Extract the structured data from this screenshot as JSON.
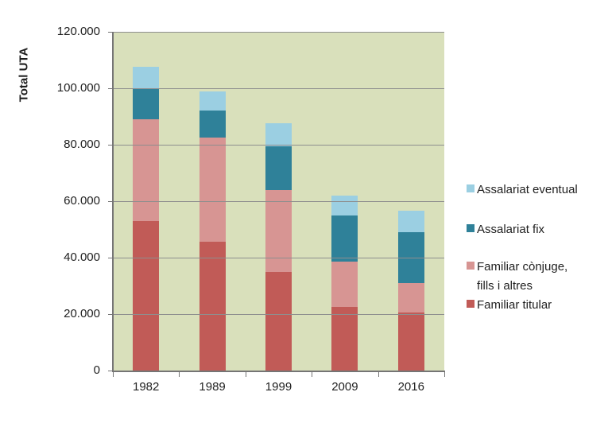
{
  "chart_data": {
    "type": "bar",
    "stacked": true,
    "title": "",
    "xlabel": "",
    "ylabel": "Total UTA",
    "ylim": [
      0,
      120000
    ],
    "ytick_step": 20000,
    "grid": true,
    "legend_position": "right",
    "categories": [
      "1982",
      "1989",
      "1999",
      "2009",
      "2016"
    ],
    "ytick_labels": [
      "0",
      "20.000",
      "40.000",
      "60.000",
      "80.000",
      "100.000",
      "120.000"
    ],
    "series": [
      {
        "name": "Familiar titular",
        "color": "#c15b57",
        "values": [
          53000,
          45500,
          35000,
          22500,
          20500
        ]
      },
      {
        "name": "Familiar cònjuge, fills i altres",
        "color": "#d79593",
        "values": [
          36000,
          37000,
          29000,
          16000,
          10500
        ]
      },
      {
        "name": "Assalariat fix",
        "color": "#2f8199",
        "values": [
          11000,
          9500,
          15500,
          16500,
          18000
        ]
      },
      {
        "name": "Assalariat eventual",
        "color": "#9bcfe2",
        "values": [
          7500,
          7000,
          8000,
          7000,
          7500
        ]
      }
    ],
    "legend_items": [
      {
        "label": "Assalariat eventual",
        "lines": [
          "Assalariat eventual"
        ],
        "color": "#9bcfe2"
      },
      {
        "label": "Assalariat fix",
        "lines": [
          "Assalariat fix"
        ],
        "color": "#2f8199"
      },
      {
        "label": "Familiar cònjuge, fills i altres",
        "lines": [
          "Familiar cònjuge,",
          "fills i altres"
        ],
        "color": "#d79593"
      },
      {
        "label": "Familiar titular",
        "lines": [
          "Familiar titular"
        ],
        "color": "#c15b57"
      }
    ]
  },
  "colors": {
    "plot_bg": "#d9e0bb",
    "grid": "#8e8e8e",
    "axis": "#757575",
    "text": "#212121"
  }
}
